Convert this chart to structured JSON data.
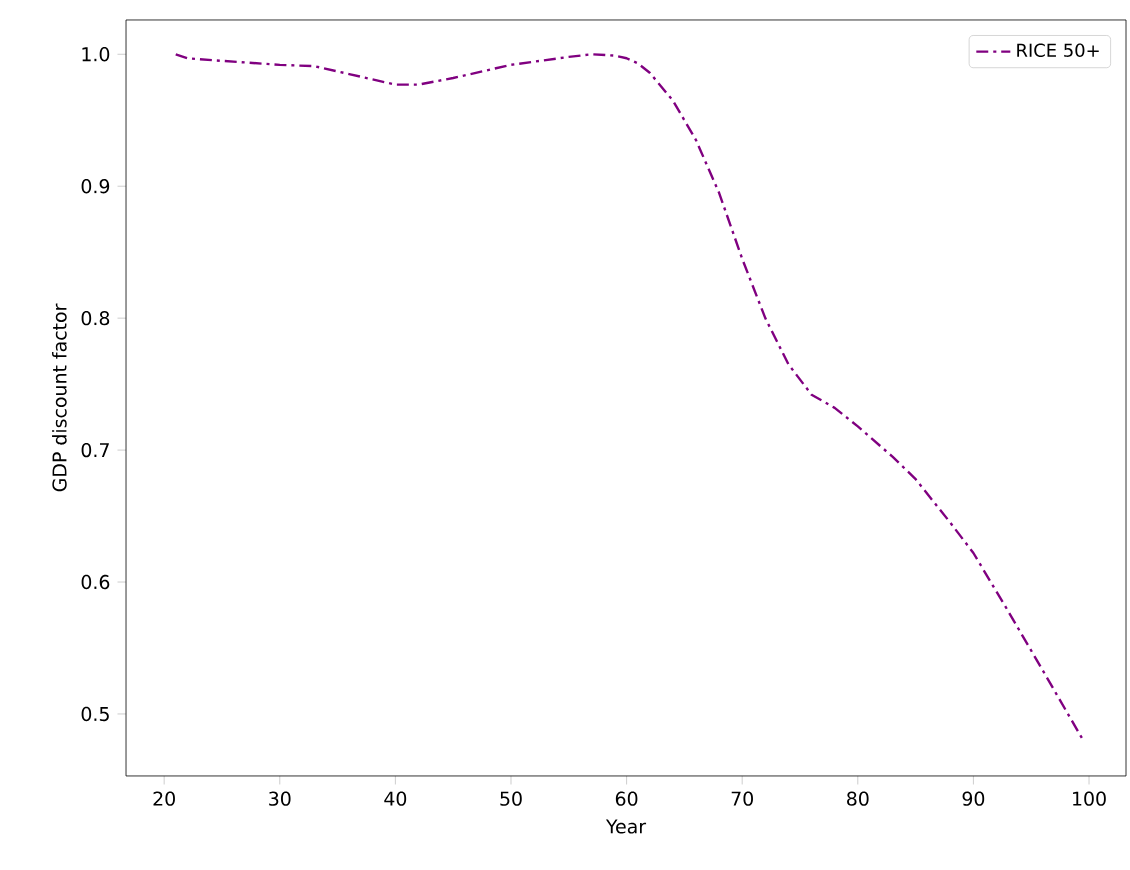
{
  "chart_data": {
    "type": "line",
    "xlabel": "Year",
    "ylabel": "GDP discount factor",
    "xlim": [
      16.7,
      103.2
    ],
    "ylim": [
      0.453,
      1.026
    ],
    "xticks": [
      20,
      30,
      40,
      50,
      60,
      70,
      80,
      90,
      100
    ],
    "yticks": [
      0.5,
      0.6,
      0.7,
      0.8,
      0.9,
      {
        "value": 1,
        "label": "1.0"
      }
    ],
    "legend": "top right",
    "grid": false,
    "series": [
      {
        "name": "RICE 50+",
        "color": "#800080",
        "line_style": "dashdot",
        "x": [
          21,
          22,
          25,
          30,
          33,
          36,
          40,
          42,
          45,
          50,
          55,
          57,
          59,
          60,
          61,
          62,
          64,
          66,
          68,
          70,
          72,
          74,
          76,
          78,
          80,
          83,
          85,
          88,
          90,
          93,
          96,
          99.5
        ],
        "values": [
          1.0,
          0.997,
          0.995,
          0.992,
          0.991,
          0.985,
          0.977,
          0.977,
          0.982,
          0.992,
          0.998,
          1.0,
          0.999,
          0.997,
          0.993,
          0.986,
          0.965,
          0.935,
          0.895,
          0.845,
          0.8,
          0.765,
          0.742,
          0.732,
          0.718,
          0.695,
          0.678,
          0.645,
          0.622,
          0.578,
          0.533,
          0.48
        ]
      }
    ]
  }
}
